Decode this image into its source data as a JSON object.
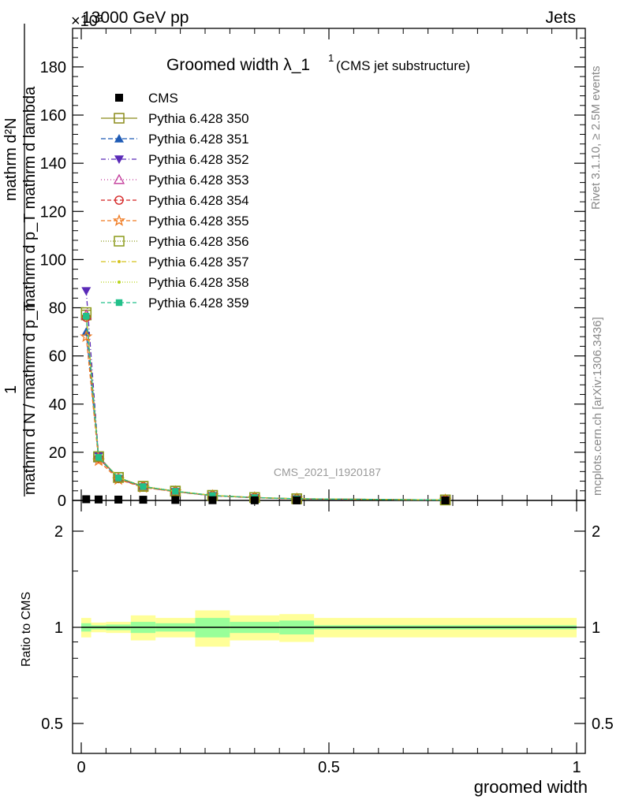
{
  "header": {
    "energy_label": "13000 GeV pp",
    "exponent_label": "×10³",
    "category_label": "Jets"
  },
  "side": {
    "rivet_label": "Rivet 3.1.10, ≥ 2.5M events",
    "mcplots_label": "mcplots.cern.ch [arXiv:1306.3436]"
  },
  "chart_data": {
    "type": "line",
    "title": "Groomed width λ_1¹ (CMS jet substructure)",
    "title_main": "Groomed width λ_1",
    "title_sup": "1",
    "title_sub": "(CMS jet substructure)",
    "watermark": "CMS_2021_I1920187",
    "xlabel": "groomed width",
    "ylabel": "1 / (mathrm d N / mathrm d p_T) · mathrm d²N / (mathrm d p_T mathrm d lambda)",
    "ylabel_num": "mathrm d²N",
    "ylabel_den": "mathrm d p_T mathrm d lambda",
    "ylabel_left": "1",
    "ylabel_left_den": "mathrm d N / mathrm d p_T",
    "ratio_ylabel": "Ratio to CMS",
    "xlim": [
      0,
      1
    ],
    "ylim": [
      0,
      196
    ],
    "y_scale_note": "×10³",
    "x_ticks": [
      "0",
      "0.5",
      "1"
    ],
    "y_ticks": [
      "0",
      "20",
      "40",
      "60",
      "80",
      "100",
      "120",
      "140",
      "160",
      "180"
    ],
    "ratio_ylim": [
      0.4,
      2.3
    ],
    "ratio_y_ticks": [
      "0.5",
      "1",
      "2"
    ],
    "legend_position": "top-left",
    "bin_edges": [
      0,
      0.02,
      0.05,
      0.1,
      0.15,
      0.23,
      0.3,
      0.4,
      0.47,
      1.0
    ],
    "data_points": {
      "name": "CMS",
      "x": [
        0.01,
        0.035,
        0.075,
        0.125,
        0.19,
        0.265,
        0.35,
        0.435,
        0.735
      ],
      "y": [
        0.5,
        0.4,
        0.35,
        0.3,
        0.2,
        0.1,
        0.05,
        0.02,
        0.005
      ]
    },
    "ratio_bands": {
      "stat_halfwidth": [
        0.03,
        0.015,
        0.02,
        0.04,
        0.03,
        0.07,
        0.04,
        0.05,
        0.015
      ],
      "total_halfwidth": [
        0.07,
        0.035,
        0.04,
        0.09,
        0.07,
        0.13,
        0.09,
        0.1,
        0.07
      ]
    },
    "series": [
      {
        "name": "Pythia 6.428 350",
        "color": "#8b8b1a",
        "dash": "",
        "marker": "square-open",
        "values": [
          77,
          18,
          9.5,
          5.8,
          3.8,
          2.1,
          1.2,
          0.7,
          0.2
        ]
      },
      {
        "name": "Pythia 6.428 351",
        "color": "#1f5bb5",
        "dash": "6,3",
        "marker": "triangle-up",
        "values": [
          70,
          17.5,
          9.3,
          5.6,
          3.7,
          2.0,
          1.1,
          0.65,
          0.2
        ]
      },
      {
        "name": "Pythia 6.428 352",
        "color": "#5a2ab8",
        "dash": "6,3,1,3",
        "marker": "triangle-down",
        "values": [
          87,
          18.5,
          9.0,
          5.5,
          3.6,
          1.9,
          1.1,
          0.6,
          0.18
        ]
      },
      {
        "name": "Pythia 6.428 353",
        "color": "#c23a9a",
        "dash": "1,3",
        "marker": "triangle-up-open",
        "values": [
          77,
          17.8,
          9.2,
          5.7,
          3.7,
          2.0,
          1.15,
          0.68,
          0.2
        ]
      },
      {
        "name": "Pythia 6.428 354",
        "color": "#d42020",
        "dash": "5,3",
        "marker": "circle-open",
        "values": [
          76,
          17.6,
          9.1,
          5.7,
          3.7,
          2.0,
          1.15,
          0.67,
          0.2
        ]
      },
      {
        "name": "Pythia 6.428 355",
        "color": "#f07a20",
        "dash": "5,3",
        "marker": "star-open",
        "values": [
          68,
          16.5,
          8.7,
          5.4,
          3.6,
          1.95,
          1.1,
          0.64,
          0.19
        ]
      },
      {
        "name": "Pythia 6.428 356",
        "color": "#8b9a1a",
        "dash": "1,2",
        "marker": "square-open",
        "values": [
          78,
          18.2,
          9.6,
          5.9,
          3.9,
          2.1,
          1.2,
          0.7,
          0.21
        ]
      },
      {
        "name": "Pythia 6.428 357",
        "color": "#d4c21a",
        "dash": "6,3,1,3",
        "marker": "dot",
        "values": [
          77.5,
          18.0,
          9.5,
          5.8,
          3.8,
          2.05,
          1.18,
          0.69,
          0.2
        ]
      },
      {
        "name": "Pythia 6.428 358",
        "color": "#b8d41a",
        "dash": "1,2",
        "marker": "dot",
        "values": [
          77,
          17.9,
          9.4,
          5.8,
          3.8,
          2.05,
          1.17,
          0.69,
          0.2
        ]
      },
      {
        "name": "Pythia 6.428 359",
        "color": "#22c08a",
        "dash": "5,3",
        "marker": "square",
        "values": [
          76.5,
          17.9,
          9.4,
          5.75,
          3.8,
          2.05,
          1.17,
          0.68,
          0.2
        ]
      }
    ],
    "colors": {
      "band_total": "#ffff99",
      "band_stat": "#99ff99",
      "data": "#000000"
    }
  }
}
